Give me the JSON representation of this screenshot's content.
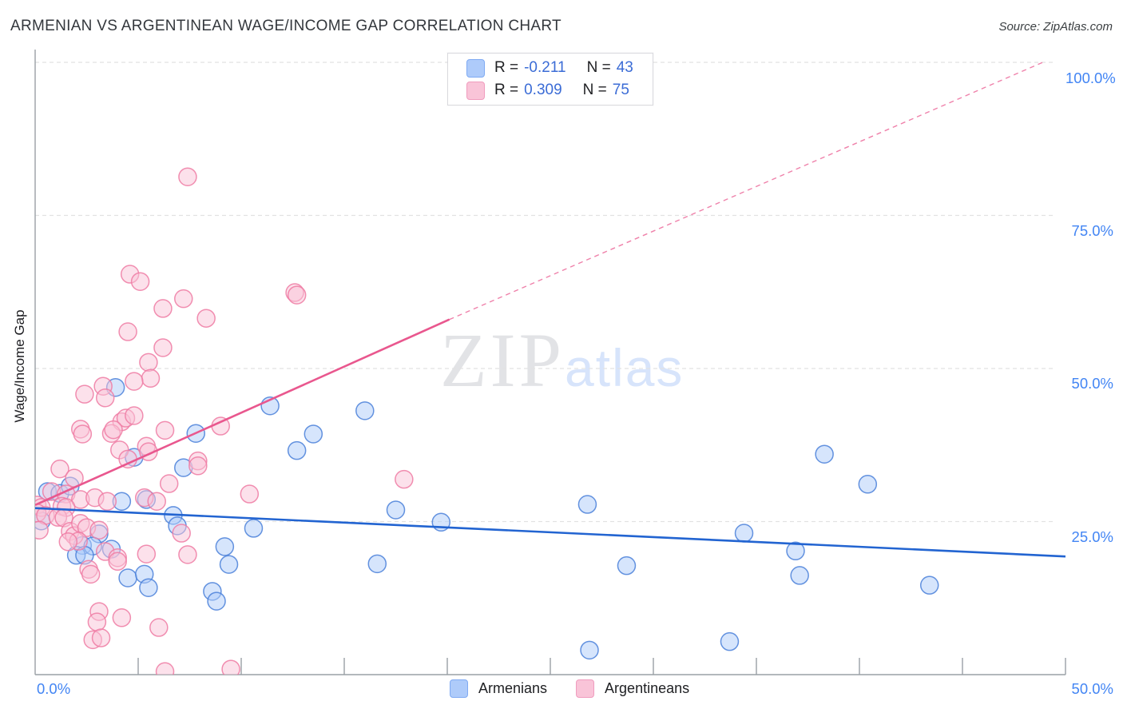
{
  "title": "ARMENIAN VS ARGENTINEAN WAGE/INCOME GAP CORRELATION CHART",
  "source": "Source: ZipAtlas.com",
  "y_axis_label": "Wage/Income Gap",
  "watermark": {
    "part1": "ZIP",
    "part2": "atlas"
  },
  "stats_legend": {
    "rows": [
      {
        "r_label": "R =",
        "r_value": "-0.211",
        "n_label": "N =",
        "n_value": "43"
      },
      {
        "r_label": "R =",
        "r_value": "0.309",
        "n_label": "N =",
        "n_value": "75"
      }
    ]
  },
  "axis_ticks": {
    "y_labels": [
      "100.0%",
      "75.0%",
      "50.0%",
      "25.0%"
    ],
    "x_left": "0.0%",
    "x_right": "50.0%"
  },
  "series_legend": [
    {
      "label": "Armenians"
    },
    {
      "label": "Argentineans"
    }
  ],
  "colors": {
    "blue_fill": "#aecbfa",
    "blue_stroke": "#4a80d9",
    "blue_trend": "#2264d1",
    "pink_fill": "#f9c4d8",
    "pink_stroke": "#ee7ba3",
    "pink_trend": "#e9578e",
    "gridline": "#e2e2e2",
    "axis": "#9aa0a6",
    "tick_label": "#4285f4"
  },
  "chart_data": {
    "type": "scatter",
    "xlabel": "",
    "ylabel": "Wage/Income Gap",
    "xlim": [
      0,
      50
    ],
    "ylim": [
      0,
      100
    ],
    "x_tick_positions": [
      0,
      5,
      10,
      15,
      20,
      25,
      30,
      35,
      40,
      45,
      50
    ],
    "y_gridlines": [
      25,
      50,
      75,
      100
    ],
    "grid": true,
    "legend_position": "bottom",
    "series": [
      {
        "name": "Armenians",
        "r": -0.211,
        "n": 43,
        "points": [
          [
            0.6,
            29.9
          ],
          [
            1.2,
            29.6
          ],
          [
            1.7,
            30.8
          ],
          [
            0.3,
            25.1
          ],
          [
            4.2,
            28.3
          ],
          [
            5.4,
            28.6
          ],
          [
            3.1,
            23.0
          ],
          [
            2.3,
            21.1
          ],
          [
            2.8,
            21.0
          ],
          [
            3.7,
            20.5
          ],
          [
            2.0,
            19.5
          ],
          [
            2.4,
            19.5
          ],
          [
            4.5,
            15.8
          ],
          [
            5.3,
            16.4
          ],
          [
            5.5,
            14.2
          ],
          [
            7.2,
            33.8
          ],
          [
            6.7,
            26.0
          ],
          [
            6.9,
            24.3
          ],
          [
            9.2,
            20.9
          ],
          [
            9.4,
            18.0
          ],
          [
            8.6,
            13.6
          ],
          [
            8.8,
            12.0
          ],
          [
            10.6,
            23.9
          ],
          [
            4.8,
            35.5
          ],
          [
            7.8,
            39.4
          ],
          [
            3.9,
            46.9
          ],
          [
            11.4,
            43.9
          ],
          [
            12.7,
            36.6
          ],
          [
            13.5,
            39.3
          ],
          [
            16.0,
            43.1
          ],
          [
            16.6,
            18.1
          ],
          [
            17.5,
            26.9
          ],
          [
            19.7,
            24.9
          ],
          [
            26.8,
            27.8
          ],
          [
            28.7,
            17.8
          ],
          [
            26.9,
            4.0
          ],
          [
            33.7,
            5.4
          ],
          [
            34.4,
            23.1
          ],
          [
            36.9,
            20.2
          ],
          [
            37.1,
            16.2
          ],
          [
            38.3,
            36.0
          ],
          [
            40.4,
            31.1
          ],
          [
            43.4,
            14.6
          ]
        ]
      },
      {
        "name": "Argentineans",
        "r": 0.309,
        "n": 75,
        "points": [
          [
            7.4,
            81.3
          ],
          [
            4.6,
            65.4
          ],
          [
            5.1,
            64.2
          ],
          [
            7.2,
            61.4
          ],
          [
            6.2,
            59.8
          ],
          [
            8.3,
            58.2
          ],
          [
            12.6,
            62.4
          ],
          [
            12.7,
            62.0
          ],
          [
            4.5,
            56.0
          ],
          [
            6.2,
            53.4
          ],
          [
            5.5,
            51.0
          ],
          [
            5.6,
            48.4
          ],
          [
            3.3,
            47.1
          ],
          [
            3.4,
            45.2
          ],
          [
            4.8,
            47.9
          ],
          [
            2.4,
            45.8
          ],
          [
            2.2,
            40.1
          ],
          [
            2.3,
            39.3
          ],
          [
            4.2,
            41.3
          ],
          [
            4.4,
            41.9
          ],
          [
            4.8,
            42.3
          ],
          [
            3.7,
            39.4
          ],
          [
            3.8,
            40.0
          ],
          [
            6.3,
            39.9
          ],
          [
            9.0,
            40.6
          ],
          [
            5.4,
            37.3
          ],
          [
            4.1,
            36.7
          ],
          [
            4.5,
            35.2
          ],
          [
            5.5,
            36.4
          ],
          [
            7.9,
            34.9
          ],
          [
            6.5,
            31.2
          ],
          [
            7.9,
            34.1
          ],
          [
            10.4,
            29.5
          ],
          [
            17.9,
            31.9
          ],
          [
            1.2,
            33.6
          ],
          [
            1.9,
            32.1
          ],
          [
            0.8,
            29.9
          ],
          [
            1.5,
            29.5
          ],
          [
            2.2,
            28.6
          ],
          [
            2.9,
            28.9
          ],
          [
            3.5,
            28.3
          ],
          [
            5.3,
            28.9
          ],
          [
            5.9,
            28.3
          ],
          [
            0.1,
            27.7
          ],
          [
            0.3,
            27.3
          ],
          [
            0.1,
            26.4
          ],
          [
            0.5,
            26.0
          ],
          [
            1.3,
            27.5
          ],
          [
            1.5,
            27.3
          ],
          [
            0.2,
            23.6
          ],
          [
            1.1,
            25.7
          ],
          [
            1.4,
            25.6
          ],
          [
            1.7,
            23.4
          ],
          [
            1.9,
            22.7
          ],
          [
            2.2,
            24.7
          ],
          [
            2.5,
            24.0
          ],
          [
            3.1,
            23.6
          ],
          [
            2.1,
            21.8
          ],
          [
            1.6,
            21.7
          ],
          [
            3.4,
            20.1
          ],
          [
            4.0,
            19.1
          ],
          [
            5.4,
            19.7
          ],
          [
            2.6,
            17.2
          ],
          [
            2.7,
            16.4
          ],
          [
            4.0,
            18.5
          ],
          [
            7.4,
            19.6
          ],
          [
            7.1,
            23.1
          ],
          [
            3.1,
            10.3
          ],
          [
            3.0,
            8.6
          ],
          [
            4.2,
            9.3
          ],
          [
            6.0,
            7.7
          ],
          [
            2.8,
            5.7
          ],
          [
            3.2,
            6.0
          ],
          [
            6.3,
            0.5
          ],
          [
            9.5,
            0.9
          ]
        ]
      }
    ],
    "trend_lines": [
      {
        "series": "Armenians",
        "x1": 0,
        "y1": 27.2,
        "x2": 50,
        "y2": 19.3,
        "dashed": false
      },
      {
        "series": "Argentineans",
        "x1": 0,
        "y1": 27.7,
        "x2": 20.1,
        "y2": 58.0,
        "dashed": false
      },
      {
        "series": "Argentineans",
        "x1": 20.1,
        "y1": 58.0,
        "x2": 48.9,
        "y2": 100.0,
        "dashed": true
      }
    ]
  }
}
